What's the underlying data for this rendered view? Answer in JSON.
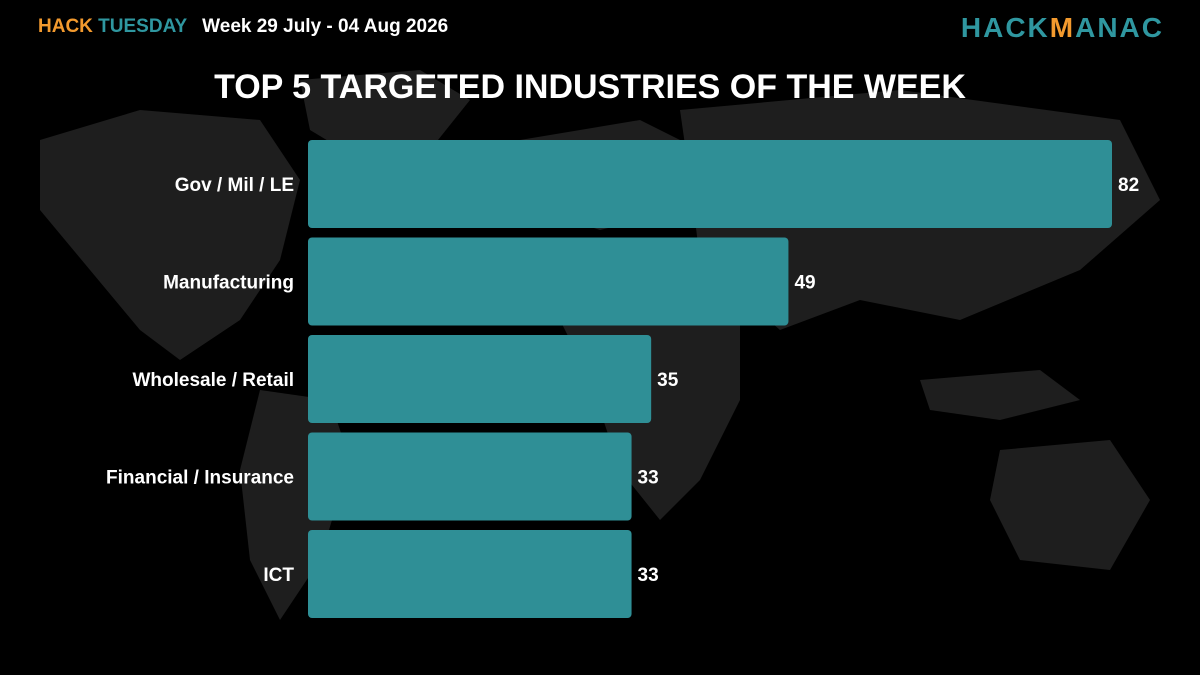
{
  "header": {
    "brand_part1": "HACK",
    "brand_part2": "TUESDAY",
    "week_range": "Week 29 July - 04 Aug 2026"
  },
  "logo": {
    "part1": "HACK",
    "part2": "M",
    "part3": "ANAC"
  },
  "colors": {
    "bar": "#2f8f96",
    "accent_orange": "#f39a2e",
    "accent_teal": "#2f97a0",
    "background": "#000000"
  },
  "chart_data": {
    "type": "bar",
    "orientation": "horizontal",
    "title": "TOP 5 TARGETED INDUSTRIES OF THE WEEK",
    "categories": [
      "Gov / Mil / LE",
      "Manufacturing",
      "Wholesale / Retail",
      "Financial / Insurance",
      "ICT"
    ],
    "values": [
      82,
      49,
      35,
      33,
      33
    ],
    "xlim": [
      0,
      82
    ],
    "grid": false,
    "legend": "none",
    "data_labels": true
  }
}
